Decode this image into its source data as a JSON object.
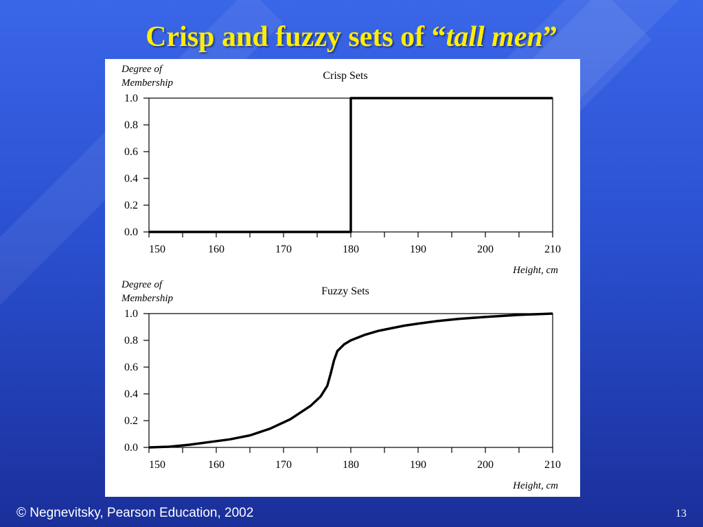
{
  "slide": {
    "title_prefix": "Crisp and fuzzy sets of “",
    "title_emphasis": "tall men",
    "title_suffix": "”",
    "copyright": "© Negnevitsky, Pearson Education, 2002",
    "page_number": "13"
  },
  "colors": {
    "title": "#ffee00",
    "background": "#2a50d0",
    "curve": "#000000"
  },
  "chart_data": [
    {
      "type": "line",
      "title": "Crisp Sets",
      "ylabel_line1": "Degree of",
      "ylabel_line2": "Membership",
      "xlabel": "Height, cm",
      "xlim": [
        150,
        210
      ],
      "ylim": [
        0,
        1
      ],
      "xticks": [
        "150",
        "160",
        "170",
        "180",
        "190",
        "200",
        "210"
      ],
      "yticks": [
        "0.0",
        "0.2",
        "0.4",
        "0.6",
        "0.8",
        "1.0"
      ],
      "grid": false,
      "series": [
        {
          "x": [
            150,
            180,
            180,
            210
          ],
          "y": [
            0,
            0,
            1,
            1
          ]
        }
      ]
    },
    {
      "type": "line",
      "title": "Fuzzy Sets",
      "ylabel_line1": "Degree of",
      "ylabel_line2": "Membership",
      "xlabel": "Height, cm",
      "xlim": [
        150,
        210
      ],
      "ylim": [
        0,
        1
      ],
      "xticks": [
        "150",
        "160",
        "170",
        "180",
        "190",
        "200",
        "210"
      ],
      "yticks": [
        "0.0",
        "0.2",
        "0.4",
        "0.6",
        "0.8",
        "1.0"
      ],
      "grid": false,
      "series": [
        {
          "x": [
            150,
            153,
            156,
            159,
            162,
            165,
            168,
            171,
            174,
            175.5,
            176.5,
            177,
            177.5,
            178,
            179,
            180,
            182,
            184,
            186,
            188,
            190,
            193,
            196,
            200,
            205,
            210
          ],
          "y": [
            0,
            0.005,
            0.02,
            0.04,
            0.06,
            0.09,
            0.14,
            0.21,
            0.31,
            0.38,
            0.46,
            0.55,
            0.65,
            0.72,
            0.77,
            0.8,
            0.84,
            0.87,
            0.89,
            0.91,
            0.925,
            0.945,
            0.96,
            0.975,
            0.99,
            1.0
          ]
        }
      ]
    }
  ]
}
